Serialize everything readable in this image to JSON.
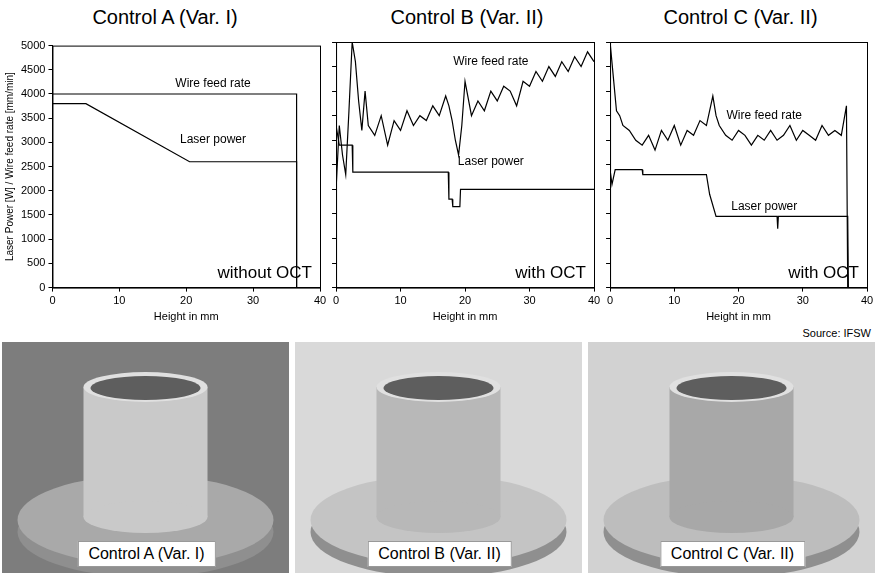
{
  "chart_data": [
    {
      "type": "line",
      "title": "Control A (Var. I)",
      "x_label": "Height in mm",
      "y_label": "Laser Power [W] / Wire feed rate [mm/min]",
      "xlim": [
        0,
        40
      ],
      "xticks": [
        0,
        10,
        20,
        30,
        40
      ],
      "ylim": [
        0,
        5000
      ],
      "yticks": [
        0,
        500,
        1000,
        1500,
        2000,
        2500,
        3000,
        3500,
        4000,
        4500,
        5000
      ],
      "grid": false,
      "annotation": "without OCT",
      "series": [
        {
          "name": "Wire feed rate",
          "color": "#000000",
          "x": [
            0,
            36.5,
            36.5
          ],
          "values": [
            4000,
            4000,
            0
          ]
        },
        {
          "name": "Laser power",
          "color": "#000000",
          "x": [
            0,
            5,
            20.5,
            36.5,
            36.5
          ],
          "values": [
            3800,
            3800,
            2600,
            2600,
            0
          ]
        }
      ]
    },
    {
      "type": "line",
      "title": "Control B (Var. II)",
      "x_label": "Height in mm",
      "xlim": [
        0,
        40
      ],
      "xticks": [
        0,
        10,
        20,
        30,
        40
      ],
      "ylim": [
        0,
        5000
      ],
      "yticks": [
        0,
        500,
        1000,
        1500,
        2000,
        2500,
        3000,
        3500,
        4000,
        4500,
        5000
      ],
      "grid": false,
      "tick_labels": "x",
      "annotation": "with OCT",
      "series": [
        {
          "name": "Wire feed rate",
          "color": "#000000",
          "x": [
            0,
            0.5,
            1,
            1.5,
            2,
            2.5,
            3,
            3.5,
            4,
            4.5,
            5,
            6,
            7,
            8,
            9,
            10,
            11,
            12,
            13,
            14,
            15,
            16,
            17,
            17.5,
            18,
            18.5,
            19,
            19.5,
            20,
            21,
            22,
            23,
            24,
            25,
            26,
            27,
            28,
            29,
            30,
            31,
            32,
            33,
            34,
            35,
            36,
            37,
            38,
            39,
            40
          ],
          "values": [
            2000,
            3300,
            2700,
            2300,
            3600,
            5000,
            4600,
            3800,
            3200,
            4000,
            3300,
            3100,
            3500,
            2900,
            3400,
            3200,
            3600,
            3300,
            3500,
            3400,
            3700,
            3500,
            3900,
            3700,
            3400,
            3000,
            2700,
            3300,
            4200,
            3500,
            3800,
            3600,
            4000,
            3800,
            4100,
            4000,
            3700,
            4200,
            4100,
            4400,
            4200,
            4500,
            4300,
            4600,
            4400,
            4700,
            4500,
            4800,
            4600
          ]
        },
        {
          "name": "Laser power",
          "color": "#000000",
          "x": [
            0,
            0.5,
            2.5,
            2.6,
            17.4,
            17.5,
            18,
            18.1,
            19.2,
            19.3,
            40
          ],
          "values": [
            3300,
            2900,
            2900,
            2350,
            2350,
            1800,
            1800,
            1650,
            1650,
            2000,
            2000
          ]
        }
      ]
    },
    {
      "type": "line",
      "title": "Control C (Var. II)",
      "x_label": "Height in mm",
      "xlim": [
        0,
        40
      ],
      "xticks": [
        0,
        10,
        20,
        30,
        40
      ],
      "ylim": [
        0,
        5000
      ],
      "yticks": [
        0,
        500,
        1000,
        1500,
        2000,
        2500,
        3000,
        3500,
        4000,
        4500,
        5000
      ],
      "grid": false,
      "tick_labels": "x",
      "annotation": "with OCT",
      "series": [
        {
          "name": "Wire feed rate",
          "color": "#000000",
          "x": [
            0,
            0.5,
            1,
            1.5,
            2,
            3,
            4,
            5,
            6,
            7,
            8,
            9,
            10,
            11,
            12,
            13,
            14,
            15,
            16,
            16.5,
            17,
            18,
            19,
            20,
            21,
            22,
            23,
            24,
            25,
            26,
            27,
            28,
            29,
            30,
            31,
            32,
            33,
            34,
            35,
            36,
            36.8,
            37
          ],
          "values": [
            5000,
            4300,
            3600,
            3500,
            3300,
            3200,
            3000,
            2900,
            3100,
            2800,
            3200,
            3000,
            3300,
            2900,
            3200,
            3100,
            3400,
            3300,
            3900,
            3500,
            3300,
            3100,
            3000,
            3200,
            3100,
            2900,
            3100,
            3000,
            3200,
            3000,
            3100,
            3300,
            3000,
            3200,
            3100,
            3000,
            3300,
            3100,
            3200,
            3100,
            3700,
            0
          ]
        },
        {
          "name": "Laser power",
          "color": "#000000",
          "x": [
            0,
            0.3,
            0.8,
            5,
            5.1,
            15,
            15.5,
            16.5,
            26,
            26.1,
            26.2,
            37,
            37.1
          ],
          "values": [
            2400,
            2100,
            2400,
            2400,
            2300,
            2300,
            1900,
            1450,
            1450,
            1200,
            1450,
            1450,
            0
          ]
        }
      ]
    }
  ],
  "source": "Source: IFSW",
  "photos": [
    {
      "caption": "Control A (Var. I)"
    },
    {
      "caption": "Control B (Var. II)"
    },
    {
      "caption": "Control C (Var. II)"
    }
  ]
}
